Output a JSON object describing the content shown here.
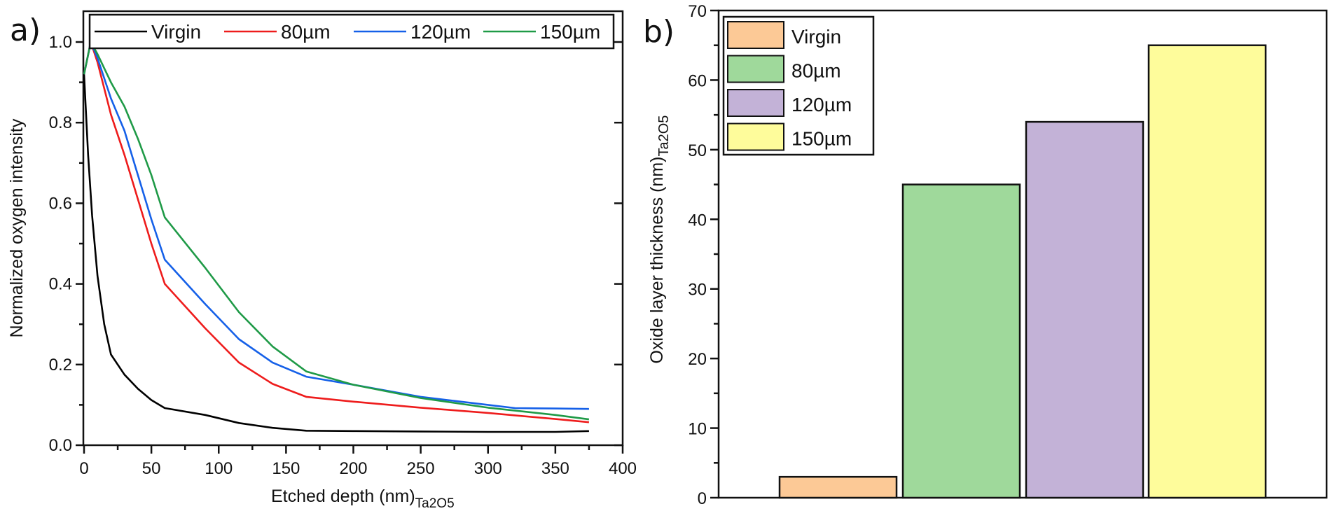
{
  "chart_data": [
    {
      "id": "a",
      "type": "line",
      "panel_label": "a)",
      "xlabel": "Etched depth (nm)",
      "xlabel_sub": "Ta2O5",
      "ylabel": "Normalized oxygen intensity",
      "xlim": [
        0,
        400
      ],
      "ylim": [
        0,
        1.1
      ],
      "xticks": [
        0,
        50,
        100,
        150,
        200,
        250,
        300,
        350,
        400
      ],
      "yticks": [
        0.0,
        0.2,
        0.4,
        0.6,
        0.8,
        1.0
      ],
      "ytick_labels": [
        "0.0",
        "0.2",
        "0.4",
        "0.6",
        "0.8",
        "1.0"
      ],
      "grid": false,
      "legend_placement": "top",
      "series": [
        {
          "name": "Virgin",
          "color": "#000000",
          "x": [
            0,
            3,
            6,
            10,
            15,
            20,
            30,
            40,
            50,
            60,
            90,
            115,
            140,
            165,
            200,
            250,
            300,
            350,
            375
          ],
          "y": [
            0.92,
            0.72,
            0.57,
            0.42,
            0.3,
            0.225,
            0.175,
            0.14,
            0.112,
            0.092,
            0.075,
            0.055,
            0.043,
            0.036,
            0.035,
            0.034,
            0.033,
            0.033,
            0.035
          ]
        },
        {
          "name": "80µm",
          "color": "#ee1c1c",
          "x": [
            0,
            5,
            10,
            20,
            30,
            40,
            50,
            60,
            90,
            115,
            140,
            165,
            200,
            250,
            300,
            350,
            375
          ],
          "y": [
            0.92,
            1.0,
            0.95,
            0.82,
            0.72,
            0.61,
            0.5,
            0.4,
            0.29,
            0.205,
            0.152,
            0.12,
            0.108,
            0.093,
            0.08,
            0.065,
            0.057
          ]
        },
        {
          "name": "120µm",
          "color": "#1560e8",
          "x": [
            0,
            5,
            10,
            20,
            30,
            40,
            50,
            60,
            90,
            115,
            140,
            165,
            200,
            250,
            300,
            320,
            350,
            375
          ],
          "y": [
            0.92,
            1.0,
            0.96,
            0.86,
            0.78,
            0.67,
            0.56,
            0.46,
            0.35,
            0.263,
            0.205,
            0.17,
            0.15,
            0.12,
            0.1,
            0.092,
            0.091,
            0.09
          ]
        },
        {
          "name": "150µm",
          "color": "#1f9a47",
          "x": [
            0,
            5,
            10,
            20,
            30,
            40,
            50,
            60,
            90,
            115,
            140,
            165,
            200,
            250,
            300,
            350,
            375
          ],
          "y": [
            0.92,
            1.0,
            0.97,
            0.9,
            0.84,
            0.76,
            0.67,
            0.565,
            0.44,
            0.33,
            0.245,
            0.183,
            0.15,
            0.117,
            0.093,
            0.075,
            0.064
          ]
        }
      ]
    },
    {
      "id": "b",
      "type": "bar",
      "panel_label": "b)",
      "xlabel": "",
      "ylabel": "Oxide layer thickness (nm)",
      "ylabel_sub": "Ta2O5",
      "ylim": [
        0,
        70
      ],
      "yticks": [
        0,
        10,
        20,
        30,
        40,
        50,
        60,
        70
      ],
      "grid": false,
      "legend_placement": "top-left",
      "categories": [
        "Virgin",
        "80µm",
        "120µm",
        "150µm"
      ],
      "values": [
        3,
        45,
        54,
        65
      ],
      "colors": [
        "#fcc996",
        "#9fd99b",
        "#c3b2d7",
        "#fefc9b"
      ]
    }
  ]
}
